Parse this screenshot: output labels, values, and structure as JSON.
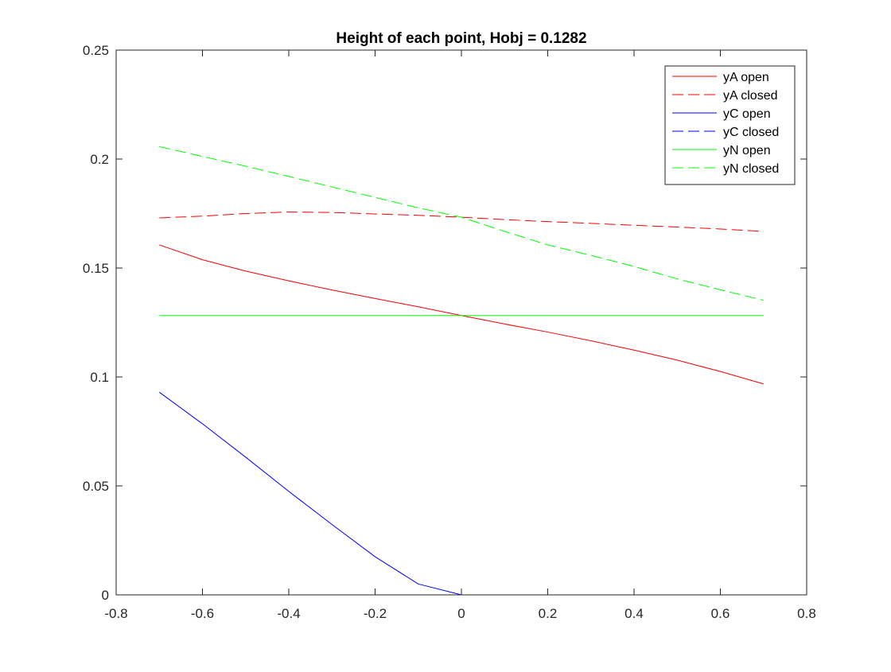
{
  "chart_data": {
    "type": "line",
    "title": "Height of each point, Hobj = 0.1282",
    "xlabel": "",
    "ylabel": "",
    "xlim": [
      -0.8,
      0.8
    ],
    "ylim": [
      0,
      0.25
    ],
    "xticks": [
      -0.8,
      -0.6,
      -0.4,
      -0.2,
      0,
      0.2,
      0.4,
      0.6,
      0.8
    ],
    "xtick_labels": [
      "-0.8",
      "-0.6",
      "-0.4",
      "-0.2",
      "0",
      "0.2",
      "0.4",
      "0.6",
      "0.8"
    ],
    "yticks": [
      0,
      0.05,
      0.1,
      0.15,
      0.2,
      0.25
    ],
    "ytick_labels": [
      "0",
      "0.05",
      "0.1",
      "0.15",
      "0.2",
      "0.25"
    ],
    "grid": false,
    "legend_position": "top-right",
    "x": [
      -0.7,
      -0.6,
      -0.5,
      -0.4,
      -0.3,
      -0.2,
      -0.1,
      0,
      0.1,
      0.2,
      0.3,
      0.4,
      0.5,
      0.6,
      0.7
    ],
    "series": [
      {
        "name": "yA open",
        "color": "#ff0000",
        "dash": "solid",
        "values": [
          0.1606,
          0.1538,
          0.1486,
          0.1441,
          0.1399,
          0.136,
          0.1322,
          0.1282,
          0.1243,
          0.1206,
          0.1166,
          0.1123,
          0.1077,
          0.1025,
          0.0968
        ]
      },
      {
        "name": "yA closed",
        "color": "#ff0000",
        "dash": "dashed",
        "values": [
          0.173,
          0.1738,
          0.175,
          0.1757,
          0.1755,
          0.1748,
          0.1742,
          0.1733,
          0.1722,
          0.1713,
          0.1705,
          0.1696,
          0.1688,
          0.1679,
          0.1668
        ]
      },
      {
        "name": "yC open",
        "color": "#0000ff",
        "dash": "solid",
        "values": [
          0.093,
          0.0785,
          0.0632,
          0.0475,
          0.0323,
          0.0175,
          0.005,
          0,
          0,
          0,
          0,
          0,
          0,
          0,
          0
        ]
      },
      {
        "name": "yC closed",
        "color": "#0000ff",
        "dash": "dashed",
        "values": [
          0,
          0,
          0,
          0,
          0,
          0,
          0,
          0,
          0,
          0,
          0,
          0,
          0,
          0,
          0
        ]
      },
      {
        "name": "yN open",
        "color": "#00ff00",
        "dash": "solid",
        "values": [
          0.1282,
          0.1282,
          0.1282,
          0.1282,
          0.1282,
          0.1282,
          0.1282,
          0.1282,
          0.1282,
          0.1282,
          0.1282,
          0.1282,
          0.1282,
          0.1282,
          0.1282
        ]
      },
      {
        "name": "yN closed",
        "color": "#00ff00",
        "dash": "dashed",
        "values": [
          0.2057,
          0.2012,
          0.1967,
          0.192,
          0.1872,
          0.1824,
          0.1776,
          0.1733,
          0.1668,
          0.1606,
          0.1558,
          0.1507,
          0.145,
          0.14,
          0.1352
        ]
      }
    ]
  }
}
